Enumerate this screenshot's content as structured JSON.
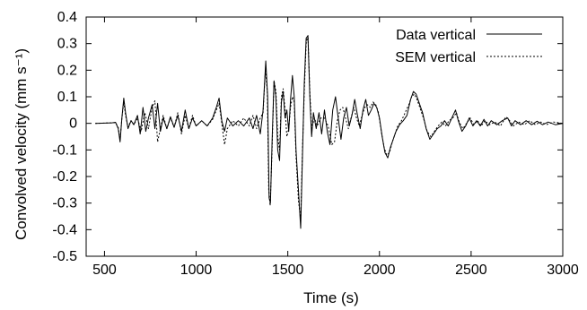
{
  "chart_data": {
    "type": "line",
    "xlabel": "Time (s)",
    "ylabel": "Convolved velocity (mm s⁻¹)",
    "xlim": [
      400,
      3000
    ],
    "ylim": [
      -0.5,
      0.4
    ],
    "xticks": [
      500,
      1000,
      1500,
      2000,
      2500,
      3000
    ],
    "yticks": [
      -0.5,
      -0.4,
      -0.3,
      -0.2,
      -0.1,
      0,
      0.1,
      0.2,
      0.3,
      0.4
    ],
    "legend_position": "top-right",
    "grid": false,
    "series": [
      {
        "name": "Data vertical",
        "style": "solid",
        "color": "#000000",
        "points": [
          [
            450,
            0
          ],
          [
            540,
            0.002
          ],
          [
            560,
            0.004
          ],
          [
            575,
            -0.02
          ],
          [
            585,
            -0.07
          ],
          [
            595,
            0.02
          ],
          [
            605,
            0.095
          ],
          [
            615,
            0.04
          ],
          [
            628,
            -0.02
          ],
          [
            645,
            0.01
          ],
          [
            660,
            -0.005
          ],
          [
            680,
            0.03
          ],
          [
            695,
            -0.04
          ],
          [
            710,
            0.06
          ],
          [
            725,
            -0.03
          ],
          [
            740,
            0.02
          ],
          [
            760,
            0.07
          ],
          [
            775,
            -0.02
          ],
          [
            790,
            0.075
          ],
          [
            805,
            -0.03
          ],
          [
            820,
            0.02
          ],
          [
            840,
            -0.02
          ],
          [
            860,
            0.025
          ],
          [
            880,
            -0.015
          ],
          [
            900,
            0.03
          ],
          [
            920,
            -0.03
          ],
          [
            940,
            0.05
          ],
          [
            960,
            -0.02
          ],
          [
            980,
            0.02
          ],
          [
            1000,
            -0.01
          ],
          [
            1030,
            0.01
          ],
          [
            1060,
            -0.01
          ],
          [
            1090,
            0.02
          ],
          [
            1110,
            0.06
          ],
          [
            1125,
            0.095
          ],
          [
            1140,
            0.01
          ],
          [
            1155,
            -0.03
          ],
          [
            1170,
            0.02
          ],
          [
            1200,
            -0.01
          ],
          [
            1230,
            0.01
          ],
          [
            1260,
            -0.01
          ],
          [
            1290,
            0.02
          ],
          [
            1310,
            -0.02
          ],
          [
            1330,
            0.03
          ],
          [
            1350,
            -0.04
          ],
          [
            1365,
            0.05
          ],
          [
            1380,
            0.235
          ],
          [
            1390,
            0.1
          ],
          [
            1398,
            -0.28
          ],
          [
            1405,
            -0.3
          ],
          [
            1415,
            -0.05
          ],
          [
            1425,
            0.16
          ],
          [
            1435,
            0.1
          ],
          [
            1445,
            -0.1
          ],
          [
            1455,
            -0.14
          ],
          [
            1465,
            0.08
          ],
          [
            1475,
            0.12
          ],
          [
            1485,
            0.02
          ],
          [
            1495,
            0.05
          ],
          [
            1505,
            -0.03
          ],
          [
            1515,
            0.09
          ],
          [
            1525,
            0.18
          ],
          [
            1535,
            0.1
          ],
          [
            1545,
            -0.1
          ],
          [
            1558,
            -0.25
          ],
          [
            1570,
            -0.395
          ],
          [
            1580,
            -0.12
          ],
          [
            1590,
            0.15
          ],
          [
            1600,
            0.32
          ],
          [
            1610,
            0.33
          ],
          [
            1620,
            0.1
          ],
          [
            1630,
            -0.05
          ],
          [
            1640,
            0.04
          ],
          [
            1655,
            -0.02
          ],
          [
            1670,
            0.04
          ],
          [
            1685,
            -0.04
          ],
          [
            1700,
            0.05
          ],
          [
            1715,
            -0.03
          ],
          [
            1730,
            -0.08
          ],
          [
            1745,
            0.05
          ],
          [
            1760,
            0.1
          ],
          [
            1775,
            0.02
          ],
          [
            1790,
            -0.06
          ],
          [
            1805,
            0.02
          ],
          [
            1820,
            0.06
          ],
          [
            1835,
            -0.01
          ],
          [
            1850,
            0.03
          ],
          [
            1865,
            0.09
          ],
          [
            1880,
            0.03
          ],
          [
            1895,
            -0.02
          ],
          [
            1910,
            0.05
          ],
          [
            1925,
            0.09
          ],
          [
            1940,
            0.03
          ],
          [
            1955,
            0.05
          ],
          [
            1970,
            0.075
          ],
          [
            1985,
            0.06
          ],
          [
            2000,
            0.02
          ],
          [
            2015,
            -0.05
          ],
          [
            2030,
            -0.11
          ],
          [
            2045,
            -0.13
          ],
          [
            2060,
            -0.09
          ],
          [
            2075,
            -0.06
          ],
          [
            2090,
            -0.03
          ],
          [
            2110,
            -0.005
          ],
          [
            2130,
            0.01
          ],
          [
            2150,
            0.03
          ],
          [
            2170,
            0.09
          ],
          [
            2185,
            0.12
          ],
          [
            2200,
            0.11
          ],
          [
            2215,
            0.08
          ],
          [
            2235,
            0.04
          ],
          [
            2255,
            -0.02
          ],
          [
            2275,
            -0.06
          ],
          [
            2295,
            -0.04
          ],
          [
            2315,
            -0.02
          ],
          [
            2335,
            -0.01
          ],
          [
            2355,
            0.01
          ],
          [
            2375,
            -0.01
          ],
          [
            2395,
            0.02
          ],
          [
            2415,
            0.05
          ],
          [
            2430,
            0.01
          ],
          [
            2450,
            -0.03
          ],
          [
            2470,
            -0.01
          ],
          [
            2490,
            0.02
          ],
          [
            2510,
            -0.01
          ],
          [
            2530,
            0.01
          ],
          [
            2550,
            -0.01
          ],
          [
            2570,
            0.015
          ],
          [
            2590,
            -0.01
          ],
          [
            2610,
            0.01
          ],
          [
            2640,
            -0.005
          ],
          [
            2670,
            0.01
          ],
          [
            2700,
            0.02
          ],
          [
            2720,
            -0.01
          ],
          [
            2740,
            0.01
          ],
          [
            2770,
            -0.005
          ],
          [
            2800,
            0.01
          ],
          [
            2830,
            -0.005
          ],
          [
            2860,
            0.008
          ],
          [
            2890,
            -0.005
          ],
          [
            2920,
            0.005
          ],
          [
            2960,
            -0.005
          ],
          [
            3000,
            0
          ]
        ]
      },
      {
        "name": "SEM vertical",
        "style": "dotted",
        "color": "#000000",
        "points": [
          [
            450,
            0
          ],
          [
            540,
            0.002
          ],
          [
            560,
            0.003
          ],
          [
            575,
            -0.015
          ],
          [
            585,
            -0.06
          ],
          [
            595,
            0.02
          ],
          [
            605,
            0.08
          ],
          [
            615,
            0.03
          ],
          [
            628,
            -0.015
          ],
          [
            645,
            0.01
          ],
          [
            660,
            -0.005
          ],
          [
            680,
            0.02
          ],
          [
            700,
            -0.03
          ],
          [
            720,
            0.04
          ],
          [
            740,
            -0.02
          ],
          [
            760,
            0.06
          ],
          [
            775,
            0.085
          ],
          [
            790,
            -0.07
          ],
          [
            805,
            -0.02
          ],
          [
            820,
            0.03
          ],
          [
            840,
            -0.02
          ],
          [
            860,
            0.02
          ],
          [
            880,
            -0.015
          ],
          [
            900,
            0.04
          ],
          [
            920,
            -0.04
          ],
          [
            940,
            0.03
          ],
          [
            960,
            -0.02
          ],
          [
            980,
            0.03
          ],
          [
            1000,
            -0.01
          ],
          [
            1030,
            0.01
          ],
          [
            1060,
            -0.01
          ],
          [
            1090,
            0.015
          ],
          [
            1110,
            0.05
          ],
          [
            1125,
            0.075
          ],
          [
            1140,
            0.0
          ],
          [
            1155,
            -0.08
          ],
          [
            1170,
            -0.02
          ],
          [
            1200,
            0.01
          ],
          [
            1230,
            -0.01
          ],
          [
            1260,
            0.02
          ],
          [
            1290,
            -0.01
          ],
          [
            1310,
            0.03
          ],
          [
            1330,
            -0.02
          ],
          [
            1350,
            0.02
          ],
          [
            1365,
            0.04
          ],
          [
            1378,
            0.2
          ],
          [
            1388,
            0.12
          ],
          [
            1396,
            -0.25
          ],
          [
            1404,
            -0.31
          ],
          [
            1414,
            -0.1
          ],
          [
            1425,
            0.16
          ],
          [
            1435,
            0.12
          ],
          [
            1445,
            -0.05
          ],
          [
            1455,
            -0.1
          ],
          [
            1465,
            0.1
          ],
          [
            1475,
            0.13
          ],
          [
            1485,
            0.05
          ],
          [
            1495,
            -0.05
          ],
          [
            1505,
            -0.02
          ],
          [
            1515,
            0.06
          ],
          [
            1525,
            0.1
          ],
          [
            1535,
            0.08
          ],
          [
            1545,
            -0.12
          ],
          [
            1558,
            -0.29
          ],
          [
            1570,
            -0.36
          ],
          [
            1580,
            -0.1
          ],
          [
            1590,
            0.12
          ],
          [
            1600,
            0.3
          ],
          [
            1610,
            0.33
          ],
          [
            1620,
            0.12
          ],
          [
            1630,
            -0.02
          ],
          [
            1645,
            0.02
          ],
          [
            1660,
            -0.01
          ],
          [
            1680,
            0.02
          ],
          [
            1700,
            0.02
          ],
          [
            1720,
            -0.01
          ],
          [
            1740,
            -0.08
          ],
          [
            1755,
            -0.07
          ],
          [
            1770,
            0.01
          ],
          [
            1785,
            0.05
          ],
          [
            1800,
            0.06
          ],
          [
            1815,
            0.02
          ],
          [
            1830,
            -0.02
          ],
          [
            1845,
            0.02
          ],
          [
            1860,
            0.06
          ],
          [
            1875,
            0.02
          ],
          [
            1890,
            -0.01
          ],
          [
            1905,
            0.03
          ],
          [
            1920,
            0.06
          ],
          [
            1935,
            0.07
          ],
          [
            1950,
            0.06
          ],
          [
            1965,
            0.08
          ],
          [
            1980,
            0.07
          ],
          [
            1995,
            0.04
          ],
          [
            2010,
            -0.03
          ],
          [
            2025,
            -0.09
          ],
          [
            2040,
            -0.12
          ],
          [
            2055,
            -0.11
          ],
          [
            2070,
            -0.07
          ],
          [
            2085,
            -0.04
          ],
          [
            2100,
            -0.01
          ],
          [
            2120,
            0.01
          ],
          [
            2140,
            0.04
          ],
          [
            2160,
            0.07
          ],
          [
            2175,
            0.1
          ],
          [
            2190,
            0.11
          ],
          [
            2205,
            0.09
          ],
          [
            2220,
            0.06
          ],
          [
            2240,
            0.02
          ],
          [
            2260,
            -0.03
          ],
          [
            2280,
            -0.05
          ],
          [
            2300,
            -0.03
          ],
          [
            2320,
            -0.01
          ],
          [
            2340,
            0.005
          ],
          [
            2360,
            -0.01
          ],
          [
            2380,
            0.01
          ],
          [
            2400,
            0.02
          ],
          [
            2420,
            0.04
          ],
          [
            2435,
            0.005
          ],
          [
            2455,
            -0.02
          ],
          [
            2475,
            0.0
          ],
          [
            2495,
            0.02
          ],
          [
            2515,
            -0.005
          ],
          [
            2535,
            0.01
          ],
          [
            2555,
            -0.01
          ],
          [
            2575,
            0.01
          ],
          [
            2600,
            -0.005
          ],
          [
            2630,
            0.005
          ],
          [
            2660,
            -0.01
          ],
          [
            2690,
            0.025
          ],
          [
            2710,
            0.01
          ],
          [
            2730,
            -0.01
          ],
          [
            2760,
            0.005
          ],
          [
            2790,
            -0.005
          ],
          [
            2820,
            0.01
          ],
          [
            2850,
            -0.005
          ],
          [
            2880,
            0.005
          ],
          [
            2910,
            -0.005
          ],
          [
            2950,
            0.005
          ],
          [
            3000,
            0
          ]
        ]
      }
    ]
  }
}
